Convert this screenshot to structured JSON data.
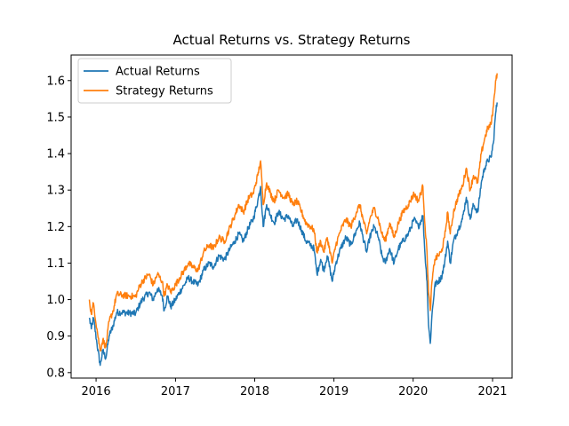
{
  "chart_data": {
    "type": "line",
    "title": "Actual Returns vs. Strategy Returns",
    "xlabel": "",
    "ylabel": "",
    "x_axis_type": "date",
    "xlim": [
      "2015-09-08",
      "2021-04-01"
    ],
    "ylim": [
      0.785,
      1.67
    ],
    "x_ticks": [
      {
        "date": "2016-01-01",
        "label": "2016"
      },
      {
        "date": "2017-01-01",
        "label": "2017"
      },
      {
        "date": "2018-01-01",
        "label": "2018"
      },
      {
        "date": "2019-01-01",
        "label": "2019"
      },
      {
        "date": "2020-01-01",
        "label": "2020"
      },
      {
        "date": "2021-01-01",
        "label": "2021"
      }
    ],
    "y_ticks": [
      0.8,
      0.9,
      1.0,
      1.1,
      1.2,
      1.3,
      1.4,
      1.5,
      1.6
    ],
    "y_tick_labels": [
      "0.8",
      "0.9",
      "1.0",
      "1.1",
      "1.2",
      "1.3",
      "1.4",
      "1.5",
      "1.6"
    ],
    "grid": false,
    "legend_position": "upper-left",
    "series": [
      {
        "name": "Actual Returns",
        "color": "#1f77b4",
        "points": [
          [
            "2015-12-01",
            0.95
          ],
          [
            "2015-12-10",
            0.92
          ],
          [
            "2015-12-20",
            0.95
          ],
          [
            "2016-01-05",
            0.88
          ],
          [
            "2016-01-20",
            0.82
          ],
          [
            "2016-02-01",
            0.86
          ],
          [
            "2016-02-15",
            0.84
          ],
          [
            "2016-03-01",
            0.9
          ],
          [
            "2016-03-20",
            0.93
          ],
          [
            "2016-04-05",
            0.965
          ],
          [
            "2016-05-01",
            0.965
          ],
          [
            "2016-06-01",
            0.963
          ],
          [
            "2016-07-01",
            0.962
          ],
          [
            "2016-07-15",
            0.98
          ],
          [
            "2016-08-01",
            1.0
          ],
          [
            "2016-09-01",
            1.02
          ],
          [
            "2016-09-20",
            1.0
          ],
          [
            "2016-10-10",
            1.03
          ],
          [
            "2016-11-01",
            1.01
          ],
          [
            "2016-11-10",
            0.97
          ],
          [
            "2016-11-25",
            1.01
          ],
          [
            "2016-12-10",
            0.98
          ],
          [
            "2017-01-01",
            1.0
          ],
          [
            "2017-01-20",
            1.02
          ],
          [
            "2017-02-10",
            1.04
          ],
          [
            "2017-03-01",
            1.06
          ],
          [
            "2017-03-20",
            1.05
          ],
          [
            "2017-04-15",
            1.04
          ],
          [
            "2017-05-10",
            1.08
          ],
          [
            "2017-06-05",
            1.1
          ],
          [
            "2017-06-25",
            1.09
          ],
          [
            "2017-07-20",
            1.12
          ],
          [
            "2017-08-15",
            1.11
          ],
          [
            "2017-09-10",
            1.14
          ],
          [
            "2017-10-01",
            1.16
          ],
          [
            "2017-10-20",
            1.18
          ],
          [
            "2017-11-10",
            1.16
          ],
          [
            "2017-12-05",
            1.2
          ],
          [
            "2017-12-25",
            1.22
          ],
          [
            "2018-01-15",
            1.27
          ],
          [
            "2018-01-28",
            1.31
          ],
          [
            "2018-02-09",
            1.2
          ],
          [
            "2018-02-25",
            1.26
          ],
          [
            "2018-03-15",
            1.23
          ],
          [
            "2018-04-01",
            1.21
          ],
          [
            "2018-04-20",
            1.24
          ],
          [
            "2018-05-15",
            1.22
          ],
          [
            "2018-06-05",
            1.23
          ],
          [
            "2018-06-25",
            1.2
          ],
          [
            "2018-07-15",
            1.22
          ],
          [
            "2018-08-05",
            1.19
          ],
          [
            "2018-08-25",
            1.16
          ],
          [
            "2018-09-15",
            1.15
          ],
          [
            "2018-10-01",
            1.14
          ],
          [
            "2018-10-15",
            1.07
          ],
          [
            "2018-11-01",
            1.11
          ],
          [
            "2018-11-15",
            1.08
          ],
          [
            "2018-12-01",
            1.12
          ],
          [
            "2018-12-15",
            1.08
          ],
          [
            "2018-12-24",
            1.05
          ],
          [
            "2019-01-10",
            1.1
          ],
          [
            "2019-02-01",
            1.14
          ],
          [
            "2019-02-25",
            1.17
          ],
          [
            "2019-03-20",
            1.15
          ],
          [
            "2019-04-15",
            1.19
          ],
          [
            "2019-04-30",
            1.21
          ],
          [
            "2019-05-15",
            1.17
          ],
          [
            "2019-06-01",
            1.13
          ],
          [
            "2019-06-15",
            1.17
          ],
          [
            "2019-07-05",
            1.2
          ],
          [
            "2019-07-25",
            1.17
          ],
          [
            "2019-08-10",
            1.12
          ],
          [
            "2019-08-25",
            1.1
          ],
          [
            "2019-09-15",
            1.14
          ],
          [
            "2019-10-05",
            1.1
          ],
          [
            "2019-10-25",
            1.14
          ],
          [
            "2019-11-15",
            1.16
          ],
          [
            "2019-12-10",
            1.18
          ],
          [
            "2020-01-05",
            1.22
          ],
          [
            "2020-01-25",
            1.2
          ],
          [
            "2020-02-15",
            1.23
          ],
          [
            "2020-02-25",
            1.12
          ],
          [
            "2020-03-05",
            1.05
          ],
          [
            "2020-03-12",
            0.93
          ],
          [
            "2020-03-20",
            0.88
          ],
          [
            "2020-03-28",
            0.96
          ],
          [
            "2020-04-10",
            1.04
          ],
          [
            "2020-04-25",
            1.05
          ],
          [
            "2020-05-10",
            1.06
          ],
          [
            "2020-05-25",
            1.1
          ],
          [
            "2020-06-08",
            1.16
          ],
          [
            "2020-06-20",
            1.1
          ],
          [
            "2020-07-05",
            1.16
          ],
          [
            "2020-07-25",
            1.19
          ],
          [
            "2020-08-15",
            1.22
          ],
          [
            "2020-09-02",
            1.28
          ],
          [
            "2020-09-20",
            1.22
          ],
          [
            "2020-10-05",
            1.26
          ],
          [
            "2020-10-25",
            1.24
          ],
          [
            "2020-11-10",
            1.32
          ],
          [
            "2020-11-25",
            1.36
          ],
          [
            "2020-12-10",
            1.38
          ],
          [
            "2020-12-25",
            1.39
          ],
          [
            "2021-01-05",
            1.43
          ],
          [
            "2021-01-15",
            1.51
          ],
          [
            "2021-01-22",
            1.54
          ]
        ]
      },
      {
        "name": "Strategy Returns",
        "color": "#ff7f0e",
        "points": [
          [
            "2015-12-01",
            1.0
          ],
          [
            "2015-12-10",
            0.96
          ],
          [
            "2015-12-20",
            0.99
          ],
          [
            "2016-01-05",
            0.92
          ],
          [
            "2016-01-20",
            0.86
          ],
          [
            "2016-02-01",
            0.89
          ],
          [
            "2016-02-15",
            0.87
          ],
          [
            "2016-03-01",
            0.94
          ],
          [
            "2016-03-20",
            0.97
          ],
          [
            "2016-04-05",
            1.015
          ],
          [
            "2016-05-01",
            1.012
          ],
          [
            "2016-06-01",
            1.01
          ],
          [
            "2016-07-01",
            1.008
          ],
          [
            "2016-07-15",
            1.03
          ],
          [
            "2016-08-01",
            1.05
          ],
          [
            "2016-09-01",
            1.07
          ],
          [
            "2016-09-20",
            1.04
          ],
          [
            "2016-10-10",
            1.07
          ],
          [
            "2016-11-01",
            1.05
          ],
          [
            "2016-11-10",
            1.01
          ],
          [
            "2016-11-25",
            1.04
          ],
          [
            "2016-12-10",
            1.02
          ],
          [
            "2017-01-01",
            1.04
          ],
          [
            "2017-01-20",
            1.06
          ],
          [
            "2017-02-10",
            1.08
          ],
          [
            "2017-03-01",
            1.1
          ],
          [
            "2017-03-20",
            1.09
          ],
          [
            "2017-04-15",
            1.08
          ],
          [
            "2017-05-10",
            1.13
          ],
          [
            "2017-06-05",
            1.15
          ],
          [
            "2017-06-25",
            1.14
          ],
          [
            "2017-07-20",
            1.17
          ],
          [
            "2017-08-15",
            1.16
          ],
          [
            "2017-09-10",
            1.2
          ],
          [
            "2017-10-01",
            1.23
          ],
          [
            "2017-10-20",
            1.26
          ],
          [
            "2017-11-10",
            1.24
          ],
          [
            "2017-12-05",
            1.28
          ],
          [
            "2017-12-25",
            1.29
          ],
          [
            "2018-01-15",
            1.34
          ],
          [
            "2018-01-28",
            1.38
          ],
          [
            "2018-02-09",
            1.26
          ],
          [
            "2018-02-25",
            1.32
          ],
          [
            "2018-03-15",
            1.29
          ],
          [
            "2018-04-01",
            1.27
          ],
          [
            "2018-04-20",
            1.3
          ],
          [
            "2018-05-15",
            1.28
          ],
          [
            "2018-06-05",
            1.29
          ],
          [
            "2018-06-25",
            1.26
          ],
          [
            "2018-07-15",
            1.27
          ],
          [
            "2018-08-05",
            1.24
          ],
          [
            "2018-08-25",
            1.21
          ],
          [
            "2018-09-15",
            1.2
          ],
          [
            "2018-10-01",
            1.19
          ],
          [
            "2018-10-15",
            1.13
          ],
          [
            "2018-11-01",
            1.16
          ],
          [
            "2018-11-15",
            1.13
          ],
          [
            "2018-12-01",
            1.17
          ],
          [
            "2018-12-15",
            1.13
          ],
          [
            "2018-12-24",
            1.1
          ],
          [
            "2019-01-10",
            1.15
          ],
          [
            "2019-02-01",
            1.19
          ],
          [
            "2019-02-25",
            1.22
          ],
          [
            "2019-03-20",
            1.2
          ],
          [
            "2019-04-15",
            1.24
          ],
          [
            "2019-04-30",
            1.26
          ],
          [
            "2019-05-15",
            1.22
          ],
          [
            "2019-06-01",
            1.18
          ],
          [
            "2019-06-15",
            1.22
          ],
          [
            "2019-07-05",
            1.25
          ],
          [
            "2019-07-25",
            1.22
          ],
          [
            "2019-08-10",
            1.18
          ],
          [
            "2019-08-25",
            1.16
          ],
          [
            "2019-09-15",
            1.21
          ],
          [
            "2019-10-05",
            1.17
          ],
          [
            "2019-10-25",
            1.21
          ],
          [
            "2019-11-15",
            1.24
          ],
          [
            "2019-12-10",
            1.26
          ],
          [
            "2020-01-05",
            1.29
          ],
          [
            "2020-01-25",
            1.27
          ],
          [
            "2020-02-15",
            1.31
          ],
          [
            "2020-02-25",
            1.2
          ],
          [
            "2020-03-05",
            1.13
          ],
          [
            "2020-03-12",
            1.02
          ],
          [
            "2020-03-20",
            0.97
          ],
          [
            "2020-03-28",
            1.05
          ],
          [
            "2020-04-10",
            1.11
          ],
          [
            "2020-04-25",
            1.12
          ],
          [
            "2020-05-10",
            1.13
          ],
          [
            "2020-05-25",
            1.17
          ],
          [
            "2020-06-08",
            1.24
          ],
          [
            "2020-06-20",
            1.18
          ],
          [
            "2020-07-05",
            1.24
          ],
          [
            "2020-07-25",
            1.28
          ],
          [
            "2020-08-15",
            1.31
          ],
          [
            "2020-09-02",
            1.36
          ],
          [
            "2020-09-20",
            1.3
          ],
          [
            "2020-10-05",
            1.34
          ],
          [
            "2020-10-25",
            1.32
          ],
          [
            "2020-11-10",
            1.4
          ],
          [
            "2020-11-25",
            1.44
          ],
          [
            "2020-12-10",
            1.47
          ],
          [
            "2020-12-25",
            1.48
          ],
          [
            "2021-01-05",
            1.53
          ],
          [
            "2021-01-15",
            1.6
          ],
          [
            "2021-01-22",
            1.62
          ]
        ]
      }
    ]
  }
}
